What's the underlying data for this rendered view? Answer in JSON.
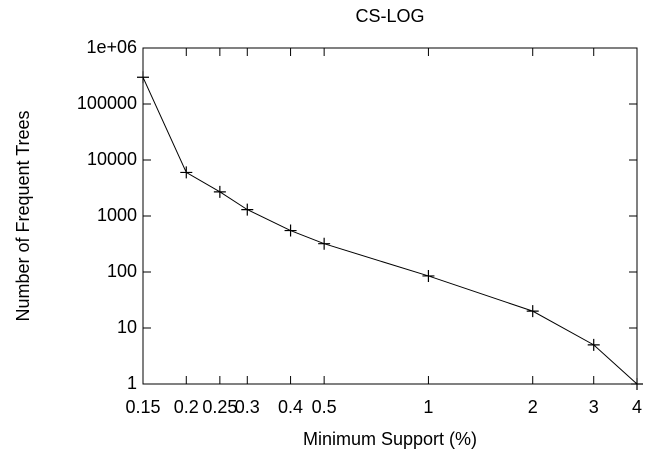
{
  "chart_data": {
    "type": "line",
    "title": "CS-LOG",
    "x_label": "Minimum Support (%)",
    "y_label": "Number of Frequent Trees",
    "x": [
      0.15,
      0.2,
      0.25,
      0.3,
      0.4,
      0.5,
      1,
      2,
      3,
      4
    ],
    "series": [
      {
        "color": "#000000",
        "values": [
          300000,
          6000,
          2700,
          1300,
          550,
          320,
          85,
          20,
          5,
          1
        ]
      }
    ],
    "xlog": true,
    "ylog": true,
    "xlim": [
      0.15,
      4
    ],
    "ylim": [
      1,
      1000000
    ],
    "xticks": [
      0.15,
      0.2,
      0.25,
      0.3,
      0.4,
      0.5,
      1,
      2,
      3,
      4
    ],
    "yticks": [
      1,
      10,
      100,
      1000,
      10000,
      100000,
      {
        "value": 1000000,
        "label": "1e+06"
      }
    ]
  }
}
